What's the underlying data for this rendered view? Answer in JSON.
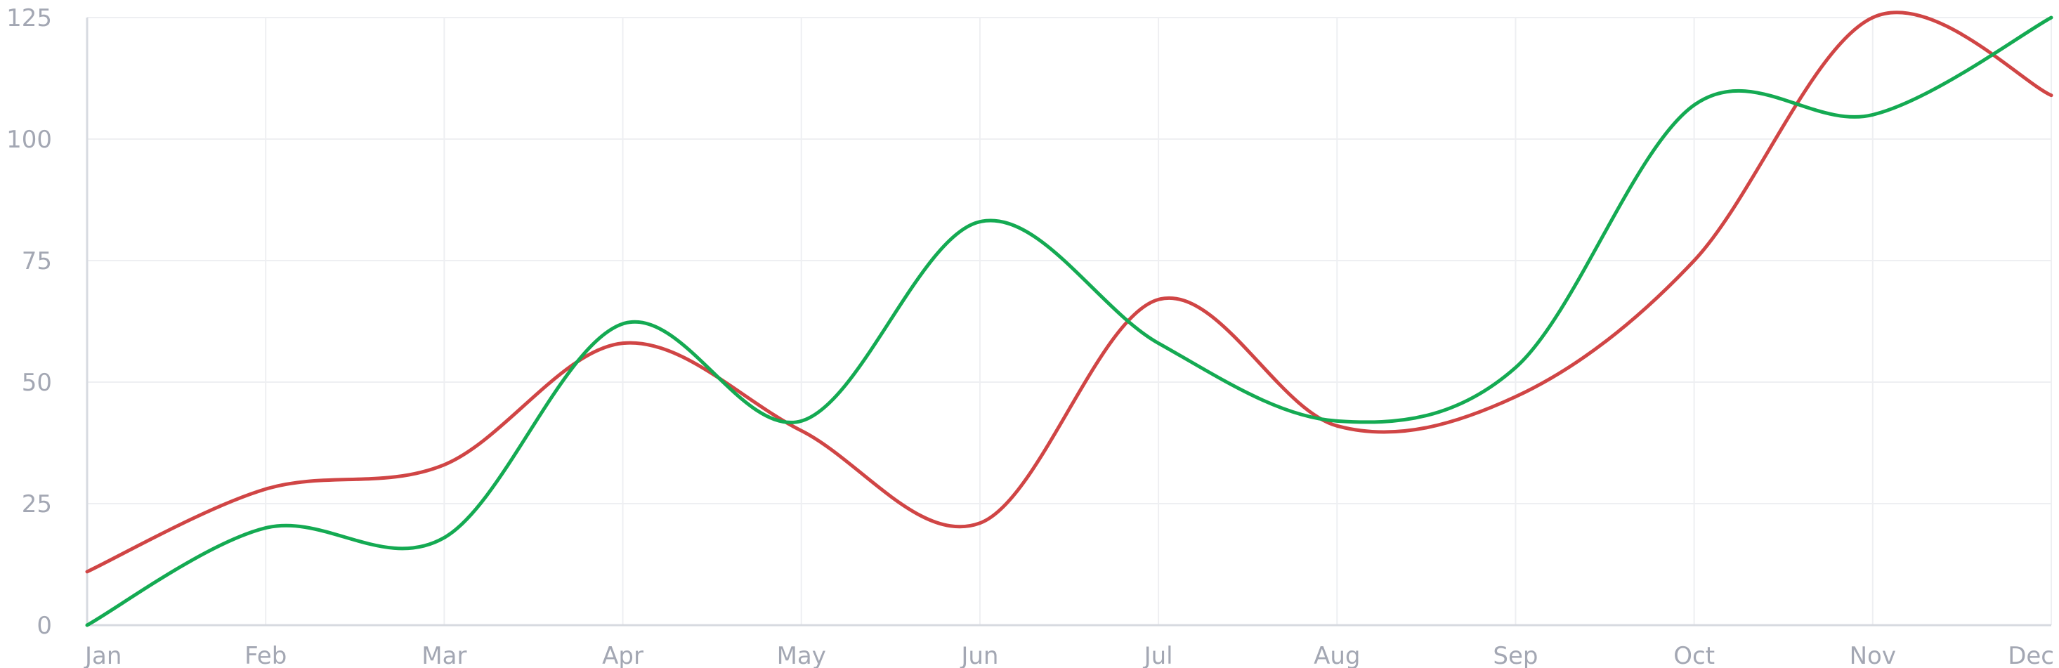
{
  "chart_data": {
    "type": "line",
    "title": "",
    "xlabel": "",
    "ylabel": "",
    "categories": [
      "Jan",
      "Feb",
      "Mar",
      "Apr",
      "May",
      "Jun",
      "Jul",
      "Aug",
      "Sep",
      "Oct",
      "Nov",
      "Dec"
    ],
    "ylim": [
      0,
      125
    ],
    "y_ticks": [
      0,
      25,
      50,
      75,
      100,
      125
    ],
    "grid": true,
    "legend": "none",
    "series": [
      {
        "color": "#14aa52",
        "values": [
          0,
          20,
          18,
          62,
          42,
          83,
          58,
          42,
          53,
          107,
          105,
          125
        ]
      },
      {
        "color": "#d04545",
        "values": [
          11,
          28,
          33,
          58,
          40,
          21,
          67,
          41,
          47,
          75,
          125,
          109
        ]
      }
    ]
  }
}
